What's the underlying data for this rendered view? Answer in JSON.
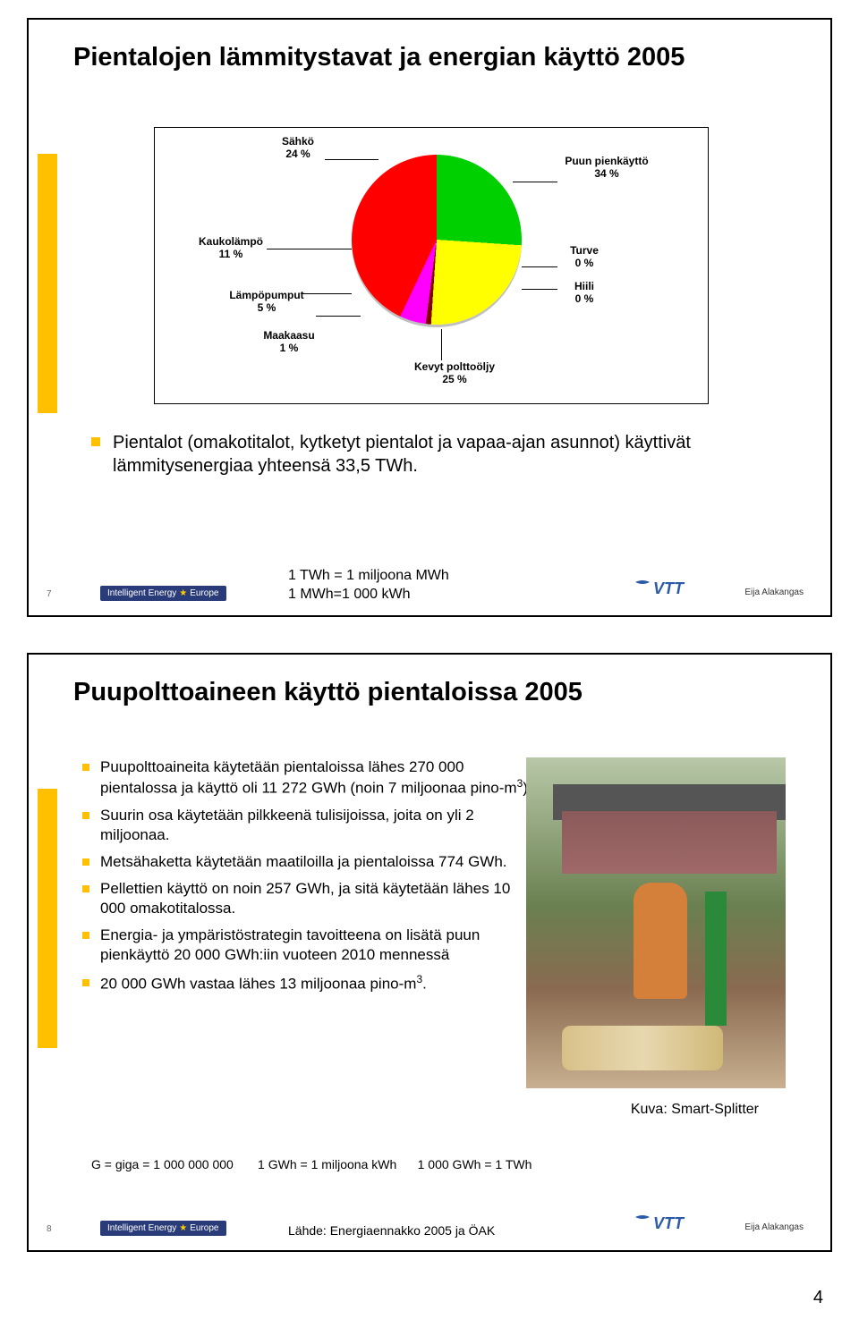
{
  "page_number": "4",
  "slide1": {
    "number": "7",
    "title": "Pientalojen lämmitystavat ja energian käyttö 2005",
    "pie": {
      "slices": [
        {
          "label": "Sähkö\n24 %",
          "value": 24,
          "color": "#0018ff"
        },
        {
          "label": "Puun pienkäyttö\n34 %",
          "value": 34,
          "color": "#00d000"
        },
        {
          "label": "Turve\n0 %",
          "value": 0,
          "color": "#707070"
        },
        {
          "label": "Hiili\n0 %",
          "value": 0,
          "color": "#303030"
        },
        {
          "label": "Kevyt polttoöljy\n25 %",
          "value": 25,
          "color": "#ffff00"
        },
        {
          "label": "Maakaasu\n1 %",
          "value": 1,
          "color": "#800000"
        },
        {
          "label": "Lämpöpumput\n5 %",
          "value": 5,
          "color": "#ff00ff"
        },
        {
          "label": "Kaukolämpö\n11 %",
          "value": 11,
          "color": "#ff0000"
        }
      ]
    },
    "labels": {
      "sahko": "Sähkö\n24 %",
      "puun": "Puun pienkäyttö\n34 %",
      "turve": "Turve\n0 %",
      "hiili": "Hiili\n0 %",
      "kevyt": "Kevyt polttoöljy\n25 %",
      "maakaasu": "Maakaasu\n1 %",
      "lampop": "Lämpöpumput\n5 %",
      "kauko": "Kaukolämpö\n11 %"
    },
    "bullet": "Pientalot (omakotitalot, kytketyt pientalot ja vapaa-ajan asunnot) käyttivät lämmitysenergiaa yhteensä 33,5 TWh.",
    "note_l1": "1 TWh = 1 miljoona MWh",
    "note_l2": "1 MWh=1 000 kWh",
    "ie_logo": "Intelligent Energy",
    "ie_eu": "Europe",
    "author": "Eija Alakangas"
  },
  "slide2": {
    "number": "8",
    "title": "Puupolttoaineen käyttö pientaloissa 2005",
    "bullets": [
      "Puupolttoaineita käytetään pientaloissa lähes 270 000 pientalossa ja käyttö oli 11 272 GWh (noin 7 miljoonaa pino-m³)",
      "Suurin osa käytetään pilkkeenä tulisijoissa, joita on yli 2 miljoonaa.",
      "Metsähaketta käytetään maatiloilla ja pientaloissa 774 GWh.",
      "Pellettien käyttö on noin 257 GWh, ja sitä käytetään lähes 10 000 omakotitalossa.",
      "Energia- ja ympäristöstrategin tavoitteena on  lisätä puun pienkäyttö 20 000 GWh:iin vuoteen 2010 mennessä",
      "20 000 GWh vastaa lähes 13 miljoonaa pino-m³."
    ],
    "photo_caption": "Kuva: Smart-Splitter",
    "g_line_1": "G = giga = 1 000 000 000",
    "g_line_2": "1 GWh = 1 miljoona kWh",
    "g_line_3": "1 000 GWh = 1 TWh",
    "source": "Lähde: Energiaennakko 2005 ja ÖAK",
    "ie_logo": "Intelligent Energy",
    "ie_eu": "Europe",
    "author": "Eija Alakangas"
  }
}
